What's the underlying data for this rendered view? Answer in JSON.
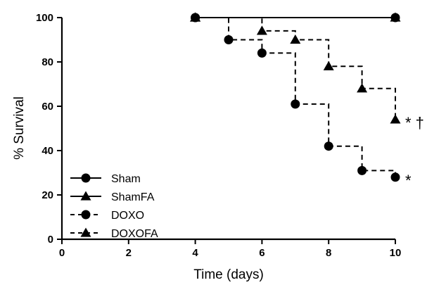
{
  "chart_data": {
    "type": "line",
    "step": true,
    "title": "",
    "xlabel": "Time (days)",
    "ylabel": "% Survival",
    "xlim": [
      0,
      10
    ],
    "ylim": [
      0,
      100
    ],
    "xticks": [
      "0",
      "2",
      "4",
      "6",
      "8",
      "10"
    ],
    "yticks": [
      "0",
      "20",
      "40",
      "60",
      "80",
      "100"
    ],
    "grid": false,
    "legend_position": "bottom-left",
    "series": [
      {
        "name": "Sham",
        "marker": "circle",
        "line": "solid",
        "x": [
          4,
          10
        ],
        "y": [
          100,
          100
        ]
      },
      {
        "name": "ShamFA",
        "marker": "triangle",
        "line": "solid",
        "x": [
          4,
          10
        ],
        "y": [
          100,
          100
        ]
      },
      {
        "name": "DOXO",
        "marker": "circle",
        "line": "dashed",
        "x": [
          4,
          5,
          6,
          7,
          8,
          9,
          10
        ],
        "y": [
          100,
          90,
          84,
          61,
          42,
          31,
          28
        ]
      },
      {
        "name": "DOXOFA",
        "marker": "triangle",
        "line": "dashed",
        "x": [
          4,
          6,
          7,
          8,
          9,
          10
        ],
        "y": [
          100,
          94,
          90,
          78,
          68,
          54
        ]
      }
    ],
    "annotations": [
      {
        "text": "* †",
        "series": "DOXOFA"
      },
      {
        "text": "*",
        "series": "DOXO"
      }
    ]
  }
}
